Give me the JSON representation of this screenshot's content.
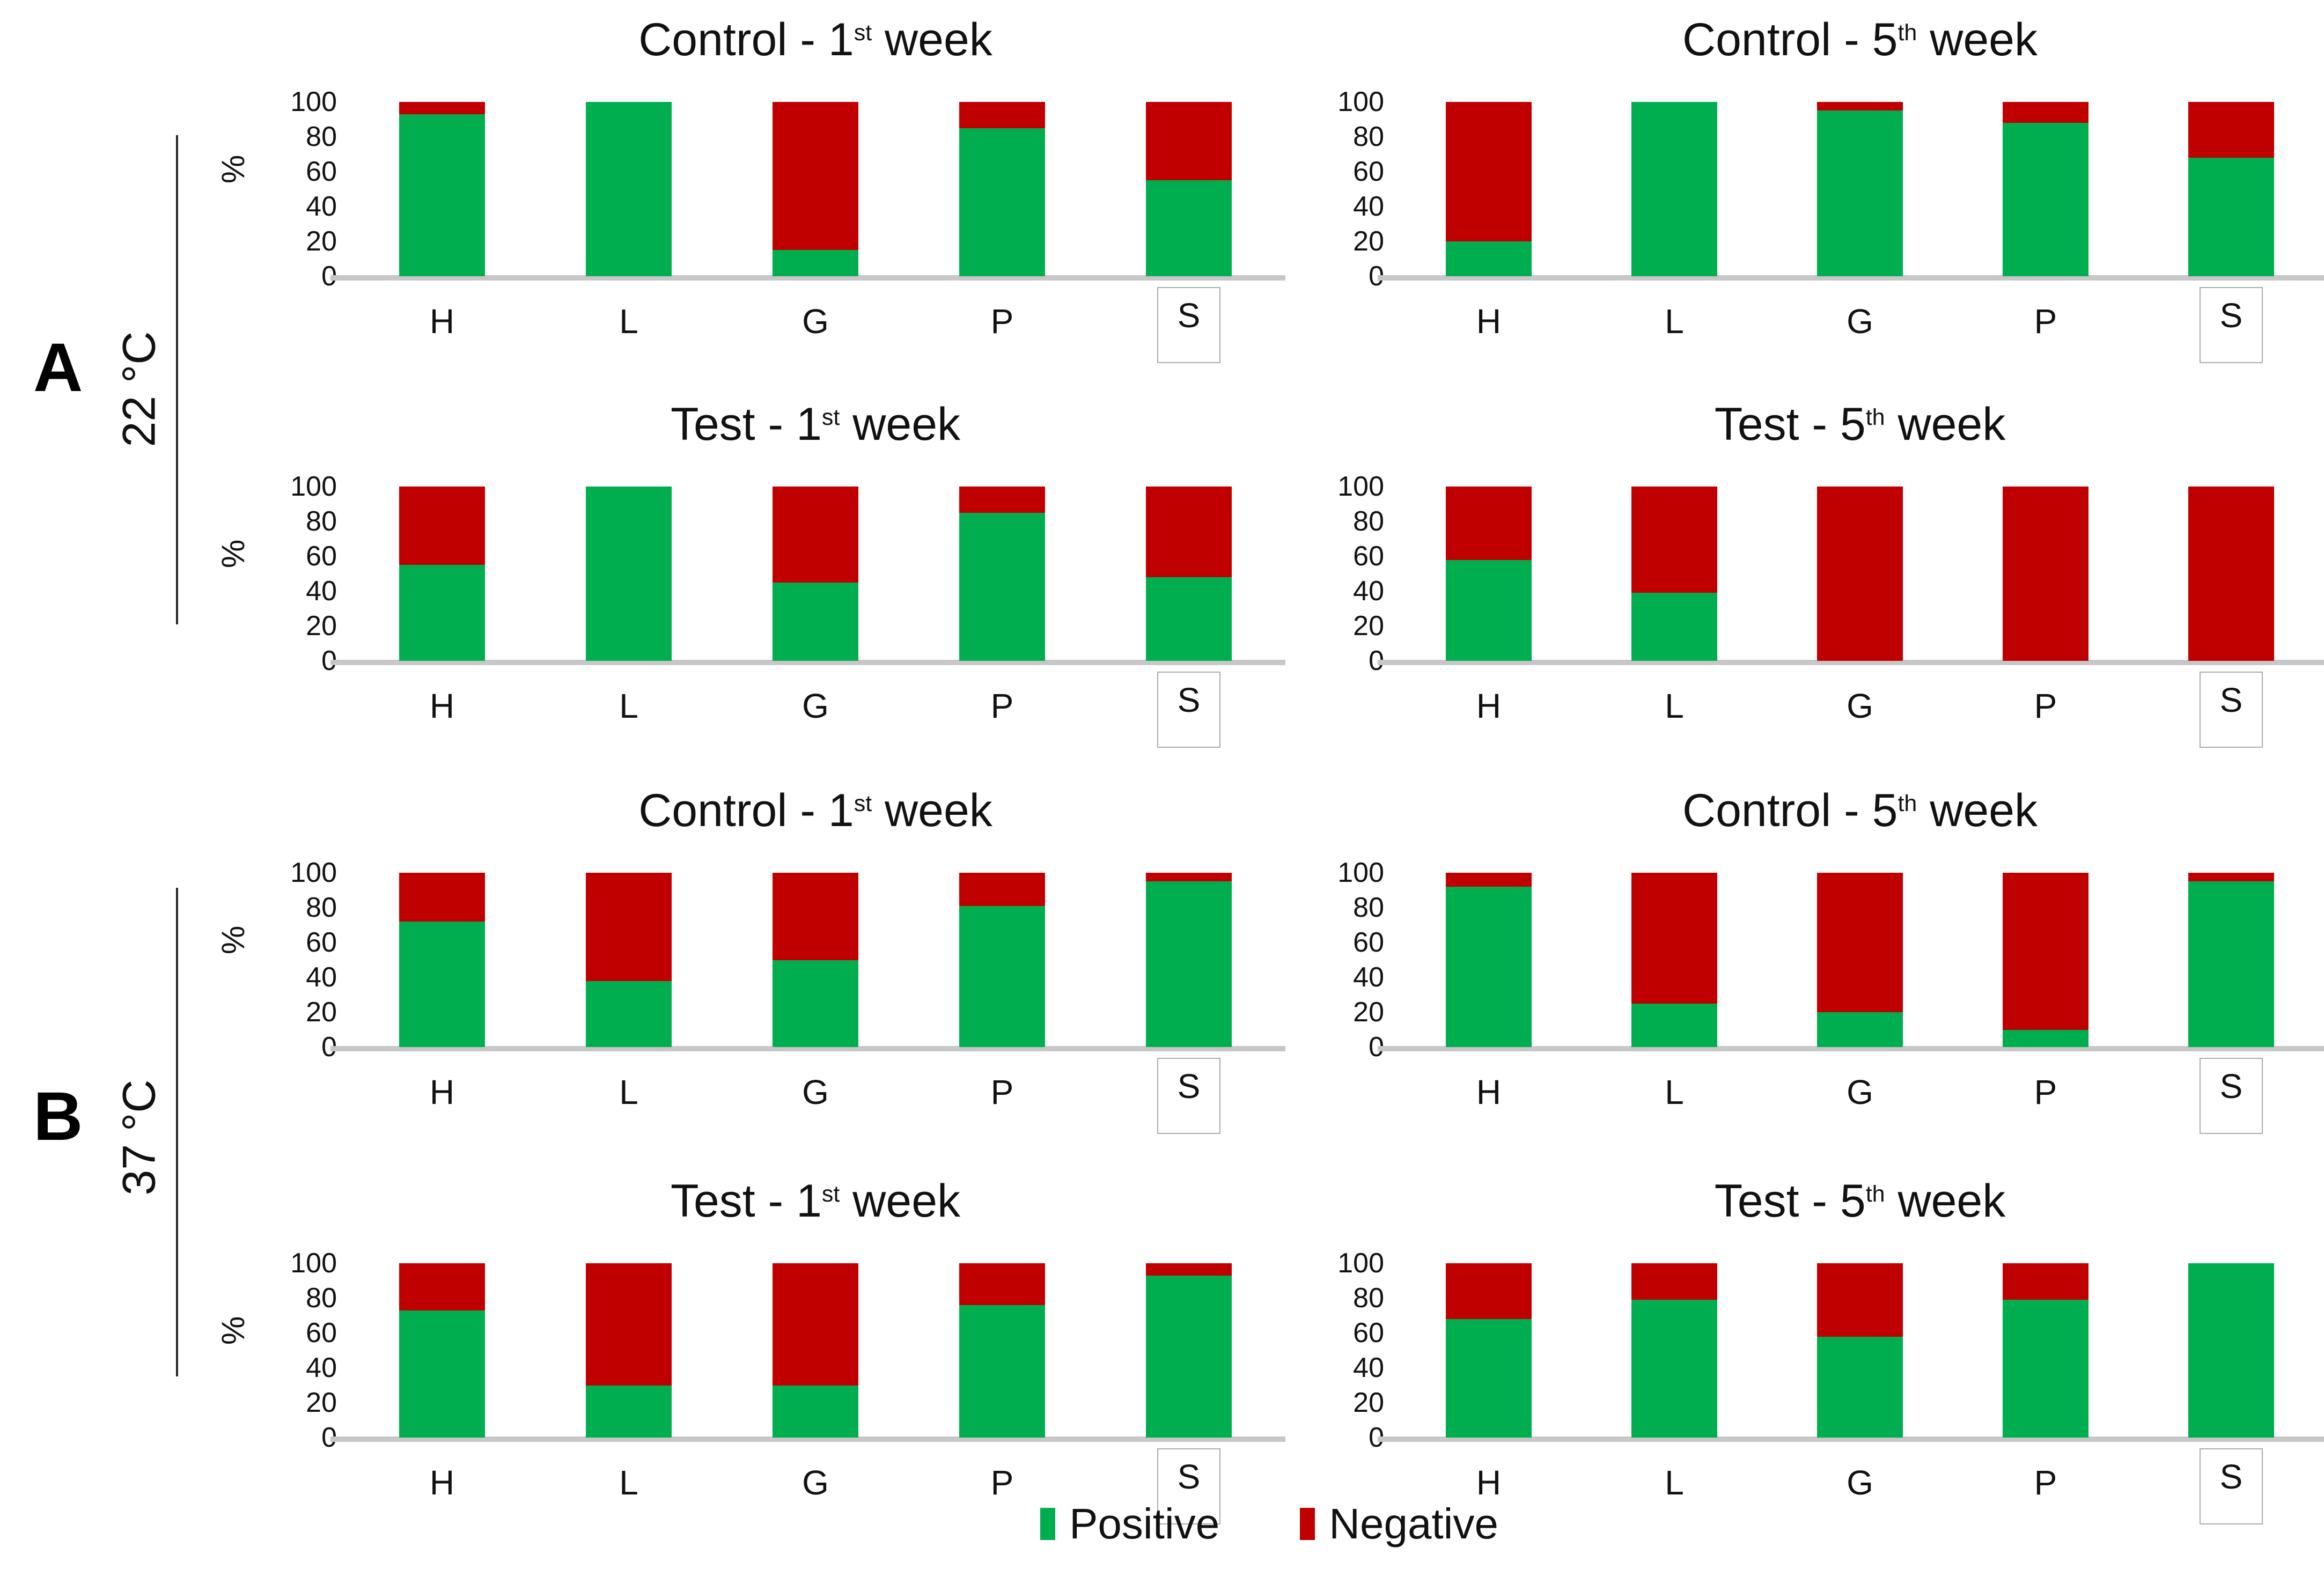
{
  "figure": {
    "ylabel": "%",
    "yticks": [
      100,
      80,
      60,
      40,
      20,
      0
    ],
    "categories": [
      "H",
      "L",
      "G",
      "P",
      "S"
    ],
    "boxed_category": "S",
    "colors": {
      "positive": "#00AE50",
      "negative": "#C00000",
      "baseline": "#C7C7C7",
      "box_border": "#ABABAB",
      "section_line": "#262626"
    }
  },
  "sections": [
    {
      "label": "A",
      "temp_label": "22 °C"
    },
    {
      "label": "B",
      "temp_label": "37 °C"
    }
  ],
  "legend": {
    "items": [
      {
        "label": "Positive",
        "color": "#00AE50"
      },
      {
        "label": "Negative",
        "color": "#C00000"
      }
    ]
  },
  "chart_data": [
    {
      "type": "bar",
      "stacked": true,
      "panel": "A",
      "temperature": "22 °C",
      "title": "Control - 1st week",
      "title_parts": {
        "main": "Control - 1",
        "sup": "st",
        "tail": " week"
      },
      "categories": [
        "H",
        "L",
        "G",
        "P",
        "S"
      ],
      "series": [
        {
          "name": "Positive",
          "values": [
            93,
            100,
            15,
            85,
            55
          ]
        },
        {
          "name": "Negative",
          "values": [
            7,
            0,
            85,
            15,
            45
          ]
        }
      ],
      "ylabel": "%",
      "ylim": [
        0,
        100
      ],
      "yticks": [
        100,
        80,
        60,
        40,
        20,
        0
      ]
    },
    {
      "type": "bar",
      "stacked": true,
      "panel": "A",
      "temperature": "22 °C",
      "title": "Control - 5th week",
      "title_parts": {
        "main": "Control - 5",
        "sup": "th",
        "tail": " week"
      },
      "categories": [
        "H",
        "L",
        "G",
        "P",
        "S"
      ],
      "series": [
        {
          "name": "Positive",
          "values": [
            20,
            100,
            95,
            88,
            68
          ]
        },
        {
          "name": "Negative",
          "values": [
            80,
            0,
            5,
            12,
            32
          ]
        }
      ],
      "ylabel": "%",
      "ylim": [
        0,
        100
      ],
      "yticks": [
        100,
        80,
        60,
        40,
        20,
        0
      ]
    },
    {
      "type": "bar",
      "stacked": true,
      "panel": "A",
      "temperature": "22 °C",
      "title": "Test - 1st week",
      "title_parts": {
        "main": "Test - 1",
        "sup": "st",
        "tail": " week"
      },
      "categories": [
        "H",
        "L",
        "G",
        "P",
        "S"
      ],
      "series": [
        {
          "name": "Positive",
          "values": [
            55,
            100,
            45,
            85,
            48
          ]
        },
        {
          "name": "Negative",
          "values": [
            45,
            0,
            55,
            15,
            52
          ]
        }
      ],
      "ylabel": "%",
      "ylim": [
        0,
        100
      ],
      "yticks": [
        100,
        80,
        60,
        40,
        20,
        0
      ]
    },
    {
      "type": "bar",
      "stacked": true,
      "panel": "A",
      "temperature": "22 °C",
      "title": "Test - 5th week",
      "title_parts": {
        "main": "Test - 5",
        "sup": "th",
        "tail": " week"
      },
      "categories": [
        "H",
        "L",
        "G",
        "P",
        "S"
      ],
      "series": [
        {
          "name": "Positive",
          "values": [
            58,
            39,
            0,
            0,
            0
          ]
        },
        {
          "name": "Negative",
          "values": [
            42,
            61,
            100,
            100,
            100
          ]
        }
      ],
      "ylabel": "%",
      "ylim": [
        0,
        100
      ],
      "yticks": [
        100,
        80,
        60,
        40,
        20,
        0
      ]
    },
    {
      "type": "bar",
      "stacked": true,
      "panel": "B",
      "temperature": "37 °C",
      "title": "Control - 1st week",
      "title_parts": {
        "main": "Control - 1",
        "sup": "st",
        "tail": " week"
      },
      "categories": [
        "H",
        "L",
        "G",
        "P",
        "S"
      ],
      "series": [
        {
          "name": "Positive",
          "values": [
            72,
            38,
            50,
            81,
            95
          ]
        },
        {
          "name": "Negative",
          "values": [
            28,
            62,
            50,
            19,
            5
          ]
        }
      ],
      "ylabel": "%",
      "ylim": [
        0,
        100
      ],
      "yticks": [
        100,
        80,
        60,
        40,
        20,
        0
      ]
    },
    {
      "type": "bar",
      "stacked": true,
      "panel": "B",
      "temperature": "37 °C",
      "title": "Control - 5th week",
      "title_parts": {
        "main": "Control - 5",
        "sup": "th",
        "tail": " week"
      },
      "categories": [
        "H",
        "L",
        "G",
        "P",
        "S"
      ],
      "series": [
        {
          "name": "Positive",
          "values": [
            92,
            25,
            20,
            10,
            95
          ]
        },
        {
          "name": "Negative",
          "values": [
            8,
            75,
            80,
            90,
            5
          ]
        }
      ],
      "ylabel": "%",
      "ylim": [
        0,
        100
      ],
      "yticks": [
        100,
        80,
        60,
        40,
        20,
        0
      ]
    },
    {
      "type": "bar",
      "stacked": true,
      "panel": "B",
      "temperature": "37 °C",
      "title": "Test - 1st week",
      "title_parts": {
        "main": "Test - 1",
        "sup": "st",
        "tail": " week"
      },
      "categories": [
        "H",
        "L",
        "G",
        "P",
        "S"
      ],
      "series": [
        {
          "name": "Positive",
          "values": [
            73,
            30,
            30,
            76,
            93
          ]
        },
        {
          "name": "Negative",
          "values": [
            27,
            70,
            70,
            24,
            7
          ]
        }
      ],
      "ylabel": "%",
      "ylim": [
        0,
        100
      ],
      "yticks": [
        100,
        80,
        60,
        40,
        20,
        0
      ]
    },
    {
      "type": "bar",
      "stacked": true,
      "panel": "B",
      "temperature": "37 °C",
      "title": "Test - 5th week",
      "title_parts": {
        "main": "Test - 5",
        "sup": "th",
        "tail": " week"
      },
      "categories": [
        "H",
        "L",
        "G",
        "P",
        "S"
      ],
      "series": [
        {
          "name": "Positive",
          "values": [
            68,
            79,
            58,
            79,
            100
          ]
        },
        {
          "name": "Negative",
          "values": [
            32,
            21,
            42,
            21,
            0
          ]
        }
      ],
      "ylabel": "%",
      "ylim": [
        0,
        100
      ],
      "yticks": [
        100,
        80,
        60,
        40,
        20,
        0
      ]
    }
  ]
}
